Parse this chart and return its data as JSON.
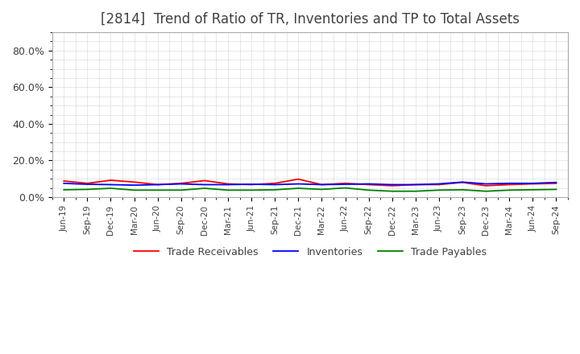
{
  "title": "[2814]  Trend of Ratio of TR, Inventories and TP to Total Assets",
  "ylim": [
    0,
    0.9
  ],
  "ytick_labels": [
    "0.0%",
    "20.0%",
    "40.0%",
    "60.0%",
    "80.0%"
  ],
  "ytick_values": [
    0.0,
    0.2,
    0.4,
    0.6,
    0.8
  ],
  "x_labels": [
    "Jun-19",
    "Sep-19",
    "Dec-19",
    "Mar-20",
    "Jun-20",
    "Sep-20",
    "Dec-20",
    "Mar-21",
    "Jun-21",
    "Sep-21",
    "Dec-21",
    "Mar-22",
    "Jun-22",
    "Sep-22",
    "Dec-22",
    "Mar-23",
    "Jun-23",
    "Sep-23",
    "Dec-23",
    "Mar-24",
    "Jun-24",
    "Sep-24"
  ],
  "trade_receivables": [
    0.088,
    0.075,
    0.092,
    0.082,
    0.068,
    0.075,
    0.09,
    0.072,
    0.068,
    0.075,
    0.098,
    0.068,
    0.075,
    0.068,
    0.062,
    0.068,
    0.068,
    0.08,
    0.062,
    0.068,
    0.072,
    0.075
  ],
  "inventories": [
    0.075,
    0.07,
    0.068,
    0.065,
    0.068,
    0.072,
    0.068,
    0.068,
    0.07,
    0.068,
    0.072,
    0.068,
    0.07,
    0.072,
    0.068,
    0.068,
    0.072,
    0.082,
    0.072,
    0.075,
    0.075,
    0.08
  ],
  "trade_payables": [
    0.04,
    0.042,
    0.048,
    0.038,
    0.038,
    0.038,
    0.048,
    0.038,
    0.038,
    0.04,
    0.048,
    0.042,
    0.05,
    0.038,
    0.032,
    0.032,
    0.038,
    0.04,
    0.032,
    0.038,
    0.04,
    0.042
  ],
  "tr_color": "#ff0000",
  "inv_color": "#0000ff",
  "tp_color": "#008000",
  "background_color": "#ffffff",
  "grid_color": "#aaaaaa",
  "title_color": "#404040",
  "legend_labels": [
    "Trade Receivables",
    "Inventories",
    "Trade Payables"
  ]
}
